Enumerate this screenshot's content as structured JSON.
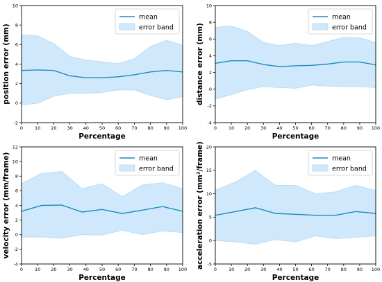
{
  "colors": {
    "mean_line": "#1f8ac0",
    "band_fill": "#cfe8fb",
    "band_edge": "#b7d9f0",
    "axis": "#000000"
  },
  "chart_data": [
    {
      "type": "line",
      "xlabel": "Percentage",
      "ylabel": "position error (mm)",
      "xlim": [
        0,
        100
      ],
      "ylim": [
        -2,
        10
      ],
      "xticks": [
        0,
        10,
        20,
        30,
        40,
        50,
        60,
        70,
        80,
        90,
        100
      ],
      "yticks": [
        -2,
        0,
        2,
        4,
        6,
        8,
        10
      ],
      "legend": {
        "position": "top-right",
        "entries": [
          "mean",
          "error band"
        ]
      },
      "series": [
        {
          "name": "mean",
          "x": [
            0,
            10,
            20,
            30,
            40,
            50,
            60,
            70,
            80,
            90,
            100
          ],
          "values": [
            3.35,
            3.4,
            3.35,
            2.8,
            2.6,
            2.6,
            2.7,
            2.9,
            3.2,
            3.35,
            3.2
          ]
        },
        {
          "name": "error band",
          "x": [
            0,
            10,
            20,
            30,
            40,
            50,
            60,
            70,
            80,
            90,
            100
          ],
          "lower": [
            -0.2,
            0.0,
            0.7,
            1.0,
            1.0,
            1.1,
            1.35,
            1.35,
            0.8,
            0.35,
            0.65
          ],
          "upper": [
            7.0,
            6.9,
            6.1,
            4.8,
            4.4,
            4.25,
            4.05,
            4.55,
            5.8,
            6.45,
            5.95
          ]
        }
      ]
    },
    {
      "type": "line",
      "xlabel": "Percentage",
      "ylabel": "distance error (mm)",
      "xlim": [
        0,
        100
      ],
      "ylim": [
        -4,
        10
      ],
      "xticks": [
        0,
        10,
        20,
        30,
        40,
        50,
        60,
        70,
        80,
        90,
        100
      ],
      "yticks": [
        -4,
        -2,
        0,
        2,
        4,
        6,
        8,
        10
      ],
      "legend": {
        "position": "top-right",
        "entries": [
          "mean",
          "error band"
        ]
      },
      "series": [
        {
          "name": "mean",
          "x": [
            0,
            10,
            20,
            30,
            40,
            50,
            60,
            70,
            80,
            90,
            100
          ],
          "values": [
            3.1,
            3.4,
            3.4,
            2.95,
            2.7,
            2.8,
            2.85,
            3.0,
            3.25,
            3.25,
            2.9
          ]
        },
        {
          "name": "error band",
          "x": [
            0,
            10,
            20,
            30,
            40,
            50,
            60,
            70,
            80,
            90,
            100
          ],
          "lower": [
            -1.2,
            -0.65,
            -0.05,
            0.3,
            0.2,
            0.1,
            0.5,
            0.35,
            0.3,
            0.3,
            0.2
          ],
          "upper": [
            7.4,
            7.55,
            6.9,
            5.6,
            5.2,
            5.5,
            5.2,
            5.7,
            6.2,
            6.15,
            5.6
          ]
        }
      ]
    },
    {
      "type": "line",
      "xlabel": "Percentage",
      "ylabel": "velocity error (mm/frame)",
      "xlim": [
        0,
        100
      ],
      "ylim": [
        -4,
        12
      ],
      "xticks": [
        0,
        10,
        20,
        30,
        40,
        50,
        60,
        70,
        80,
        90,
        100
      ],
      "yticks": [
        -4,
        -2,
        0,
        2,
        4,
        6,
        8,
        10,
        12
      ],
      "legend": {
        "position": "top-right",
        "entries": [
          "mean",
          "error band"
        ]
      },
      "series": [
        {
          "name": "mean",
          "x": [
            0,
            12.5,
            25,
            37.5,
            50,
            62.5,
            75,
            87.5,
            100
          ],
          "values": [
            3.2,
            4.0,
            4.05,
            3.1,
            3.45,
            2.9,
            3.35,
            3.85,
            3.2
          ]
        },
        {
          "name": "error band",
          "x": [
            0,
            12.5,
            25,
            37.5,
            50,
            62.5,
            75,
            87.5,
            100
          ],
          "lower": [
            -0.3,
            -0.3,
            -0.5,
            0.0,
            -0.05,
            0.6,
            0.0,
            0.5,
            0.3
          ],
          "upper": [
            7.0,
            8.4,
            8.65,
            6.3,
            6.95,
            5.2,
            6.8,
            7.1,
            6.3
          ]
        }
      ]
    },
    {
      "type": "line",
      "xlabel": "Percentage",
      "ylabel": "acceleration error (mm²/frame)",
      "xlim": [
        0,
        100
      ],
      "ylim": [
        -5,
        20
      ],
      "xticks": [
        0,
        10,
        20,
        30,
        40,
        50,
        60,
        70,
        80,
        90,
        100
      ],
      "yticks": [
        -5,
        0,
        5,
        10,
        15,
        20
      ],
      "legend": {
        "position": "top-right",
        "entries": [
          "mean",
          "error band"
        ]
      },
      "series": [
        {
          "name": "mean",
          "x": [
            0,
            12.5,
            25,
            37.5,
            50,
            62.5,
            75,
            87.5,
            100
          ],
          "values": [
            5.4,
            6.2,
            7.0,
            5.8,
            5.6,
            5.4,
            5.4,
            6.2,
            5.8
          ]
        },
        {
          "name": "error band",
          "x": [
            0,
            12.5,
            25,
            37.5,
            50,
            62.5,
            75,
            87.5,
            100
          ],
          "lower": [
            0.0,
            -0.3,
            -0.8,
            0.2,
            -0.3,
            1.0,
            0.4,
            0.7,
            1.0
          ],
          "upper": [
            10.8,
            12.5,
            15.0,
            11.8,
            11.8,
            10.0,
            10.4,
            11.8,
            10.7
          ]
        }
      ]
    }
  ]
}
